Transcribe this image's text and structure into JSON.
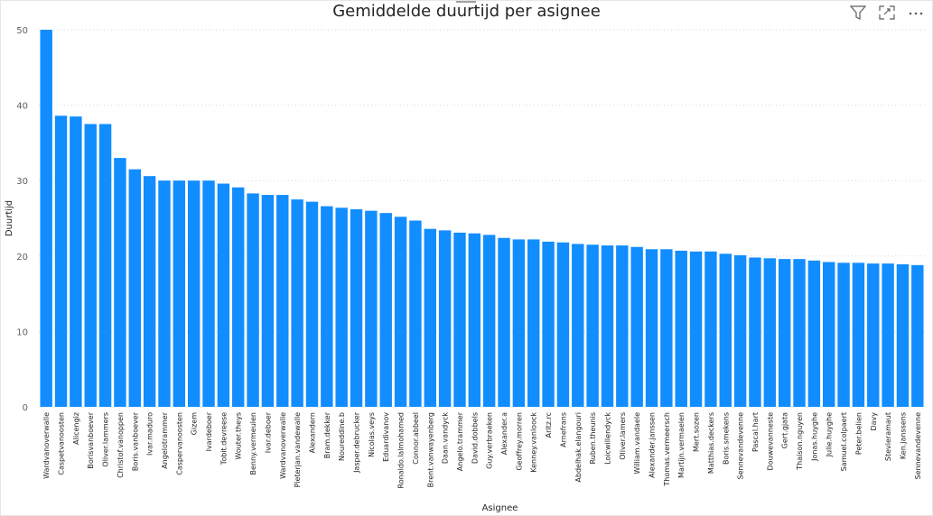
{
  "title": "Gemiddelde duurtijd per asignee",
  "toolbar": {
    "icons": [
      "filter-icon",
      "focus-mode-icon",
      "more-options-icon"
    ]
  },
  "chart_data": {
    "type": "bar",
    "title": "Gemiddelde duurtijd per asignee",
    "xlabel": "Asignee",
    "ylabel": "Duurtijd",
    "ylim": [
      0,
      50
    ],
    "yticks": [
      0,
      10,
      20,
      30,
      40,
      50
    ],
    "grid": true,
    "color": "#118DFF",
    "categories": [
      "Wardvanoverwalle",
      "Caspetvanoosten",
      "Alicengiz",
      "Borisvanboever",
      "Oliver.lammers",
      "Christof.vanoppen",
      "Boris.vanboever",
      "Ivar.maduro",
      "Angelotrammer",
      "Caspervanoosten",
      "Gizem",
      "Ivardeboer",
      "Tobit.devreese",
      "Wouter.theys",
      "Benny.vermeulen",
      "Ivar.deboer",
      "Wardvanoverwalle",
      "Pieterjan.vandewalle",
      "Alexandern",
      "Bram.dekker",
      "Noureddine.b",
      "Jasper.debrucker",
      "Nicolas.veys",
      "Eduardivanov",
      "Ronaldo.lalmohamed",
      "Connor.abbeel",
      "Brent.vanwayenberg",
      "Daan.vandyck",
      "Angelo.trammer",
      "David.dobbels",
      "Guy.verbraeken",
      "Alexander.a",
      "Geoffrey.morren",
      "Kenney.vanloock",
      "Aritz.rc",
      "Arnefrans",
      "Abdelhak.elangouri",
      "Ruben.theunis",
      "Loicwillendyck",
      "Oliver.lamers",
      "William.vandaele",
      "Alexander.janssen",
      "Thomas.vermeersch",
      "Martijn.vermaelen",
      "Mert.sozen",
      "Matthias.deckers",
      "Boris.smekens",
      "Sennevandevenne",
      "Pascal.hart",
      "Douwevanneste",
      "Gert.gjata",
      "Thaison.nguyen",
      "Jonas.huyghe",
      "Julie.huyghe",
      "Samuel.colpaert",
      "Peter.belien",
      "Davy",
      "Stevieramaut",
      "Ken.janssens",
      "Sennevandevenne"
    ],
    "values": [
      50,
      38.6,
      38.5,
      37.5,
      37.5,
      33,
      31.5,
      30.6,
      30,
      30,
      30,
      30,
      29.6,
      29.1,
      28.3,
      28.1,
      28.1,
      27.5,
      27.2,
      26.6,
      26.4,
      26.2,
      26,
      25.7,
      25.2,
      24.7,
      23.6,
      23.4,
      23.1,
      23,
      22.8,
      22.4,
      22.2,
      22.2,
      21.9,
      21.8,
      21.6,
      21.5,
      21.4,
      21.4,
      21.2,
      20.9,
      20.9,
      20.7,
      20.6,
      20.6,
      20.3,
      20.1,
      19.8,
      19.7,
      19.6,
      19.6,
      19.4,
      19.2,
      19.1,
      19.1,
      19,
      19,
      18.9,
      18.8
    ]
  }
}
